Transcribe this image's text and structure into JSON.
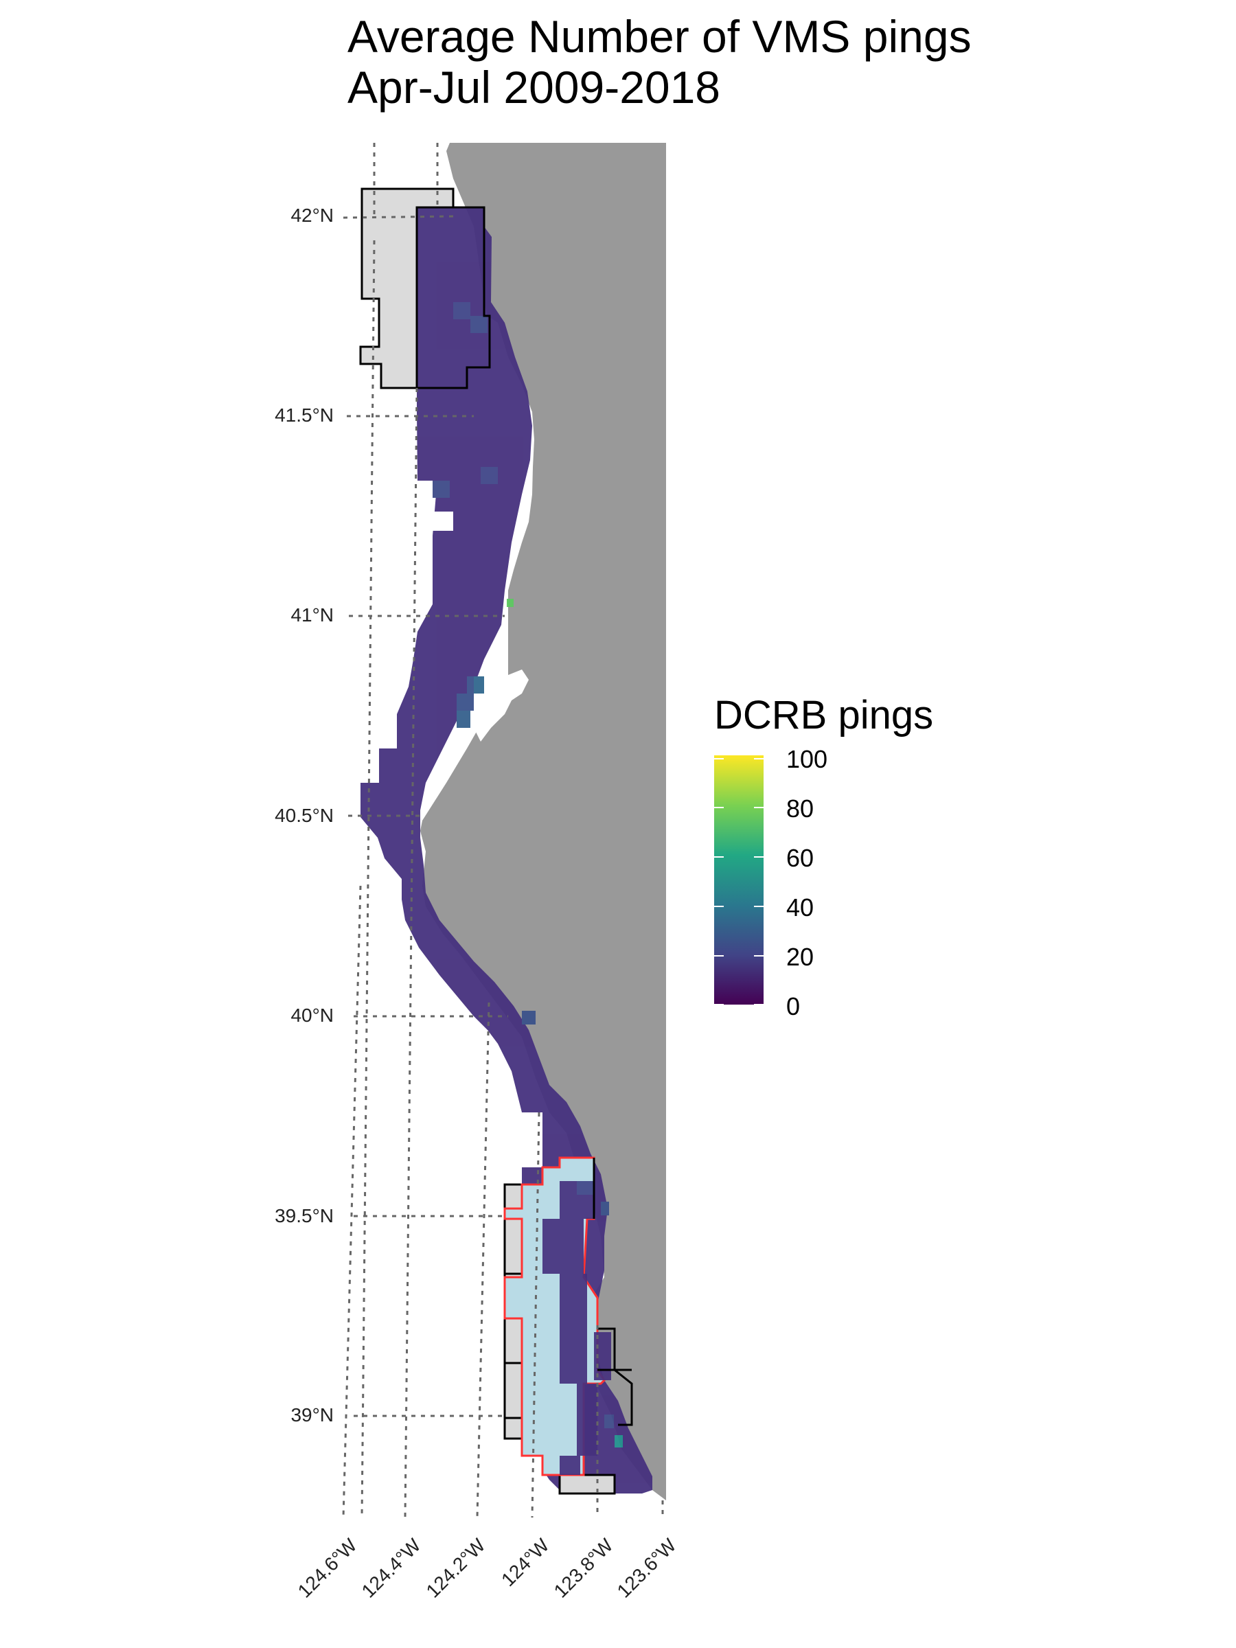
{
  "title": {
    "line1": "Average Number of VMS pings",
    "line2": "Apr-Jul 2009-2018"
  },
  "legend": {
    "title": "DCRB pings",
    "ticks": [
      "100",
      "80",
      "60",
      "40",
      "20",
      "0"
    ],
    "range": [
      0,
      100
    ],
    "colormap": "viridis"
  },
  "axes": {
    "lat_labels": [
      "42°N",
      "41.5°N",
      "41°N",
      "40.5°N",
      "40°N",
      "39.5°N",
      "39°N"
    ],
    "lon_labels": [
      "124.6°W",
      "124.4°W",
      "124.2°W",
      "124°W",
      "123.8°W",
      "123.6°W"
    ]
  },
  "colors": {
    "land": "#999999",
    "closure_fill": "#d9d9d9",
    "closure_fill_red": "#b9dbe6",
    "closure_stroke_red": "#ff3333",
    "closure_stroke_black": "#000000",
    "grid_line": "#666666",
    "base_ping": "#443a83",
    "low_ping": "#472e7c",
    "mid_ping": "#3b528b",
    "high_ping": "#21908d",
    "peak_ping": "#5ec962"
  }
}
